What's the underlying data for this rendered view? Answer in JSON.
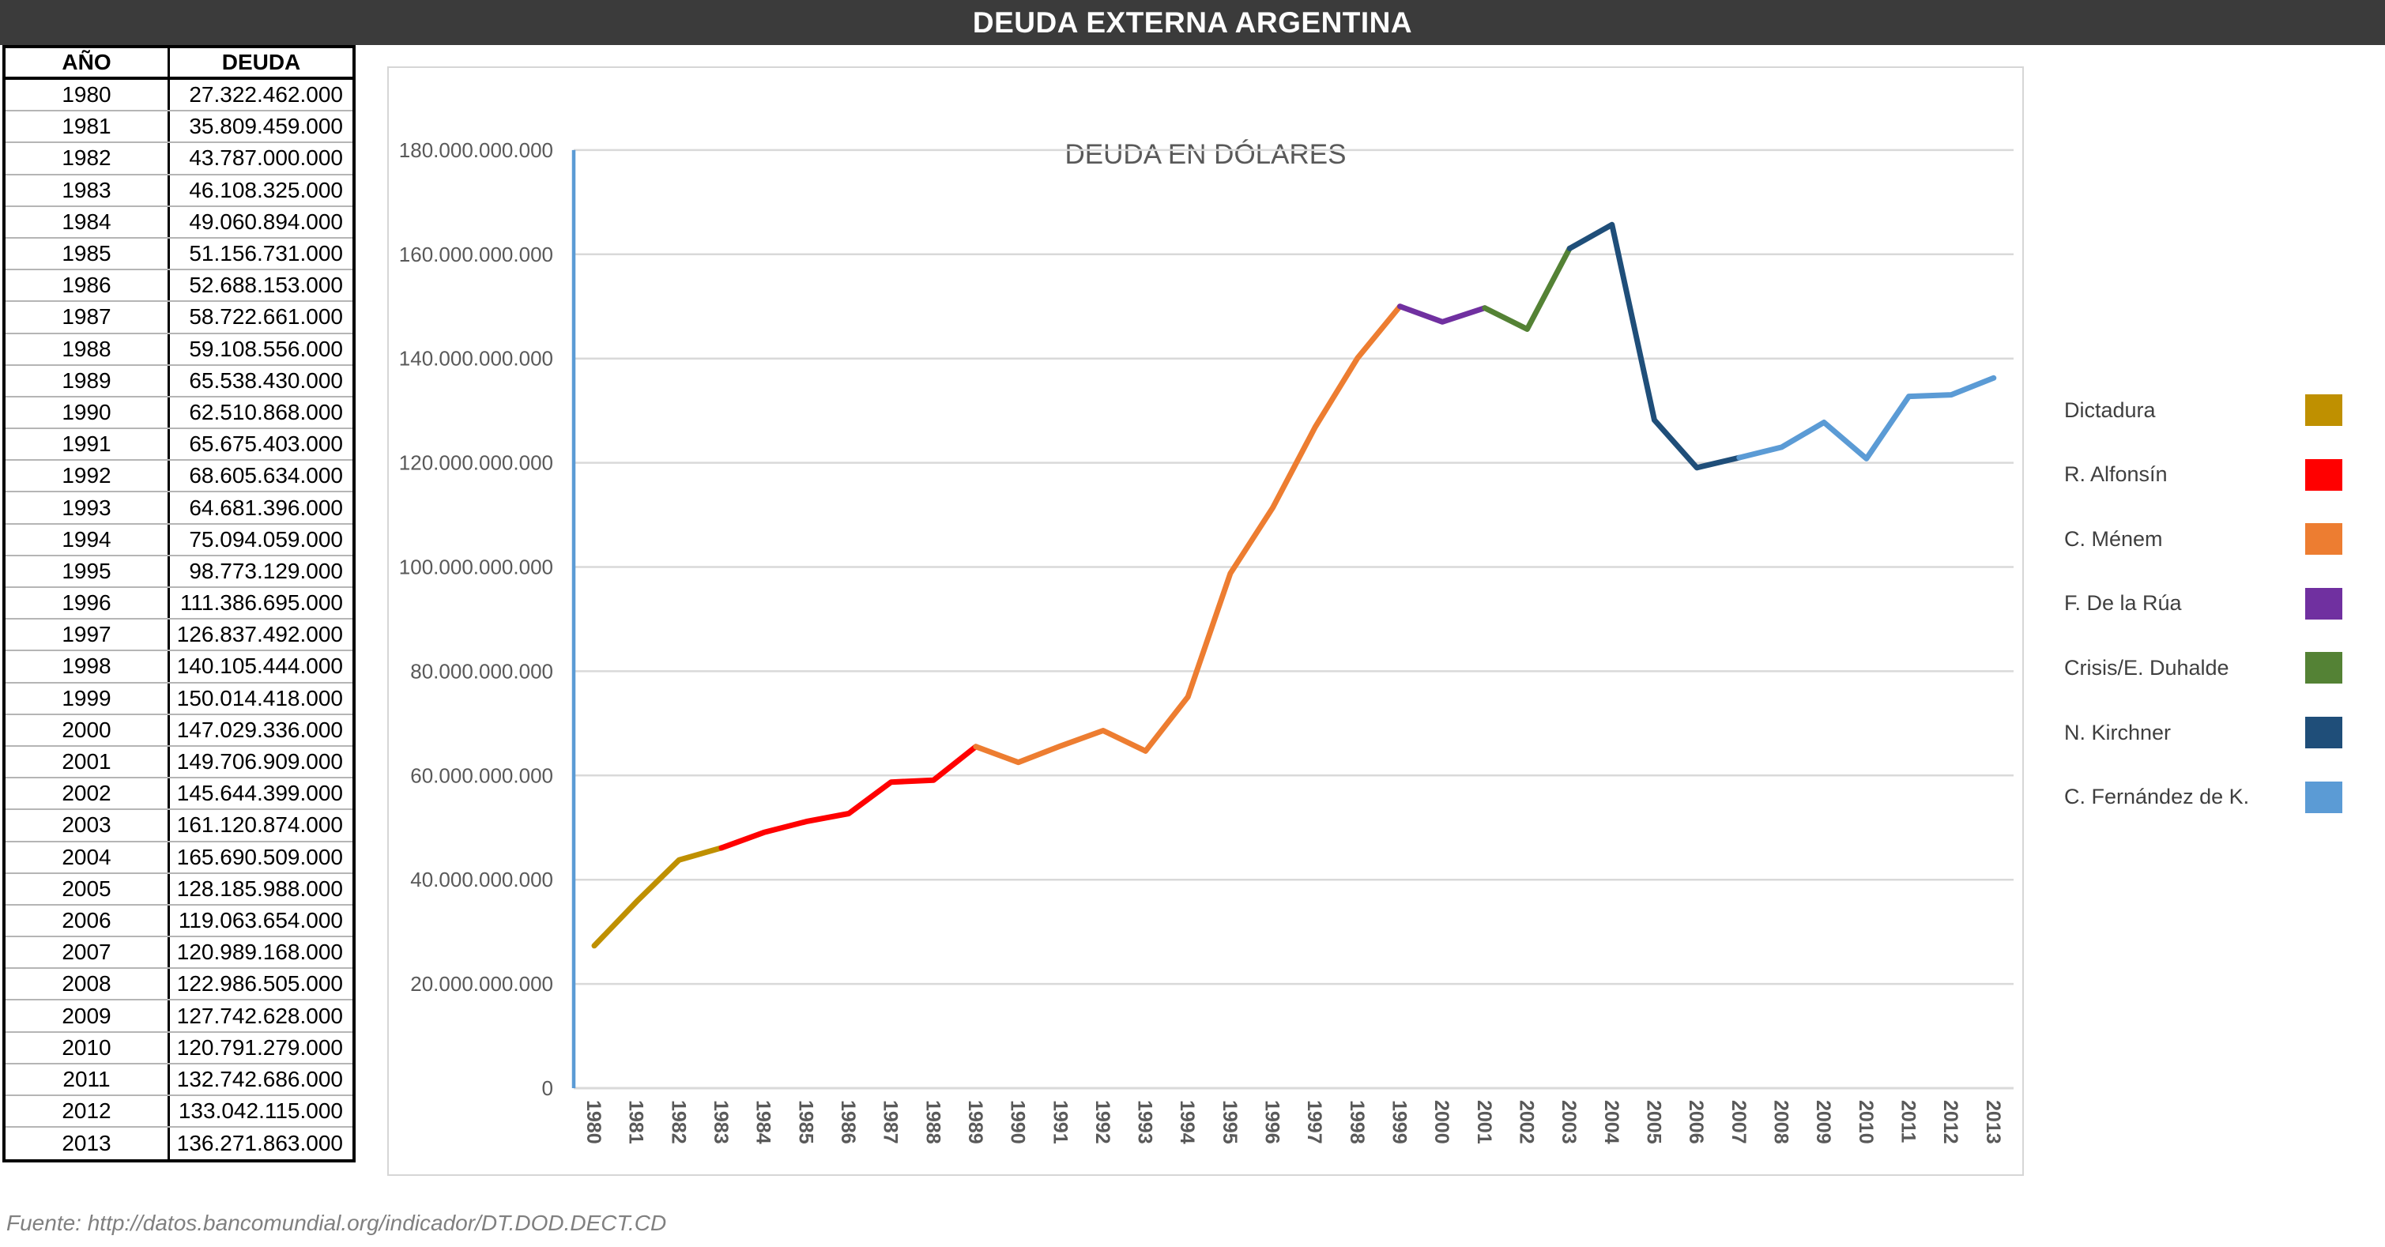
{
  "header": {
    "title": "DEUDA EXTERNA ARGENTINA"
  },
  "table": {
    "columns": [
      "AÑO",
      "DEUDA"
    ],
    "rows": [
      [
        "1980",
        "27.322.462.000"
      ],
      [
        "1981",
        "35.809.459.000"
      ],
      [
        "1982",
        "43.787.000.000"
      ],
      [
        "1983",
        "46.108.325.000"
      ],
      [
        "1984",
        "49.060.894.000"
      ],
      [
        "1985",
        "51.156.731.000"
      ],
      [
        "1986",
        "52.688.153.000"
      ],
      [
        "1987",
        "58.722.661.000"
      ],
      [
        "1988",
        "59.108.556.000"
      ],
      [
        "1989",
        "65.538.430.000"
      ],
      [
        "1990",
        "62.510.868.000"
      ],
      [
        "1991",
        "65.675.403.000"
      ],
      [
        "1992",
        "68.605.634.000"
      ],
      [
        "1993",
        "64.681.396.000"
      ],
      [
        "1994",
        "75.094.059.000"
      ],
      [
        "1995",
        "98.773.129.000"
      ],
      [
        "1996",
        "111.386.695.000"
      ],
      [
        "1997",
        "126.837.492.000"
      ],
      [
        "1998",
        "140.105.444.000"
      ],
      [
        "1999",
        "150.014.418.000"
      ],
      [
        "2000",
        "147.029.336.000"
      ],
      [
        "2001",
        "149.706.909.000"
      ],
      [
        "2002",
        "145.644.399.000"
      ],
      [
        "2003",
        "161.120.874.000"
      ],
      [
        "2004",
        "165.690.509.000"
      ],
      [
        "2005",
        "128.185.988.000"
      ],
      [
        "2006",
        "119.063.654.000"
      ],
      [
        "2007",
        "120.989.168.000"
      ],
      [
        "2008",
        "122.986.505.000"
      ],
      [
        "2009",
        "127.742.628.000"
      ],
      [
        "2010",
        "120.791.279.000"
      ],
      [
        "2011",
        "132.742.686.000"
      ],
      [
        "2012",
        "133.042.115.000"
      ],
      [
        "2013",
        "136.271.863.000"
      ]
    ]
  },
  "chart_data": {
    "type": "line",
    "title": "DEUDA EN DÓLARES",
    "x": [
      1980,
      1981,
      1982,
      1983,
      1984,
      1985,
      1986,
      1987,
      1988,
      1989,
      1990,
      1991,
      1992,
      1993,
      1994,
      1995,
      1996,
      1997,
      1998,
      1999,
      2000,
      2001,
      2002,
      2003,
      2004,
      2005,
      2006,
      2007,
      2008,
      2009,
      2010,
      2011,
      2012,
      2013
    ],
    "values": [
      27322462000,
      35809459000,
      43787000000,
      46108325000,
      49060894000,
      51156731000,
      52688153000,
      58722661000,
      59108556000,
      65538430000,
      62510868000,
      65675403000,
      68605634000,
      64681396000,
      75094059000,
      98773129000,
      111386695000,
      126837492000,
      140105444000,
      150014418000,
      147029336000,
      149706909000,
      145644399000,
      161120874000,
      165690509000,
      128185988000,
      119063654000,
      120989168000,
      122986505000,
      127742628000,
      120791279000,
      132742686000,
      133042115000,
      136271863000
    ],
    "ylim": [
      0,
      180000000000
    ],
    "ytick_step": 20000000000,
    "grid": true,
    "legend_position": "right",
    "axis_color": "#5B9BD5",
    "gridline_color": "#D9D9D9",
    "segments": [
      {
        "name": "Dictadura",
        "color": "#BF9000",
        "from": 1980,
        "to": 1983
      },
      {
        "name": "R. Alfonsín",
        "color": "#FF0000",
        "from": 1983,
        "to": 1989
      },
      {
        "name": "C. Ménem",
        "color": "#ED7D31",
        "from": 1989,
        "to": 1999
      },
      {
        "name": "F. De la Rúa",
        "color": "#7030A0",
        "from": 1999,
        "to": 2001
      },
      {
        "name": "Crisis/E. Duhalde",
        "color": "#548235",
        "from": 2001,
        "to": 2003
      },
      {
        "name": "N. Kirchner",
        "color": "#1F4E79",
        "from": 2003,
        "to": 2007
      },
      {
        "name": "C. Fernández de K.",
        "color": "#5B9BD5",
        "from": 2007,
        "to": 2013
      }
    ]
  },
  "footer": {
    "source": "Fuente: http://datos.bancomundial.org/indicador/DT.DOD.DECT.CD"
  }
}
